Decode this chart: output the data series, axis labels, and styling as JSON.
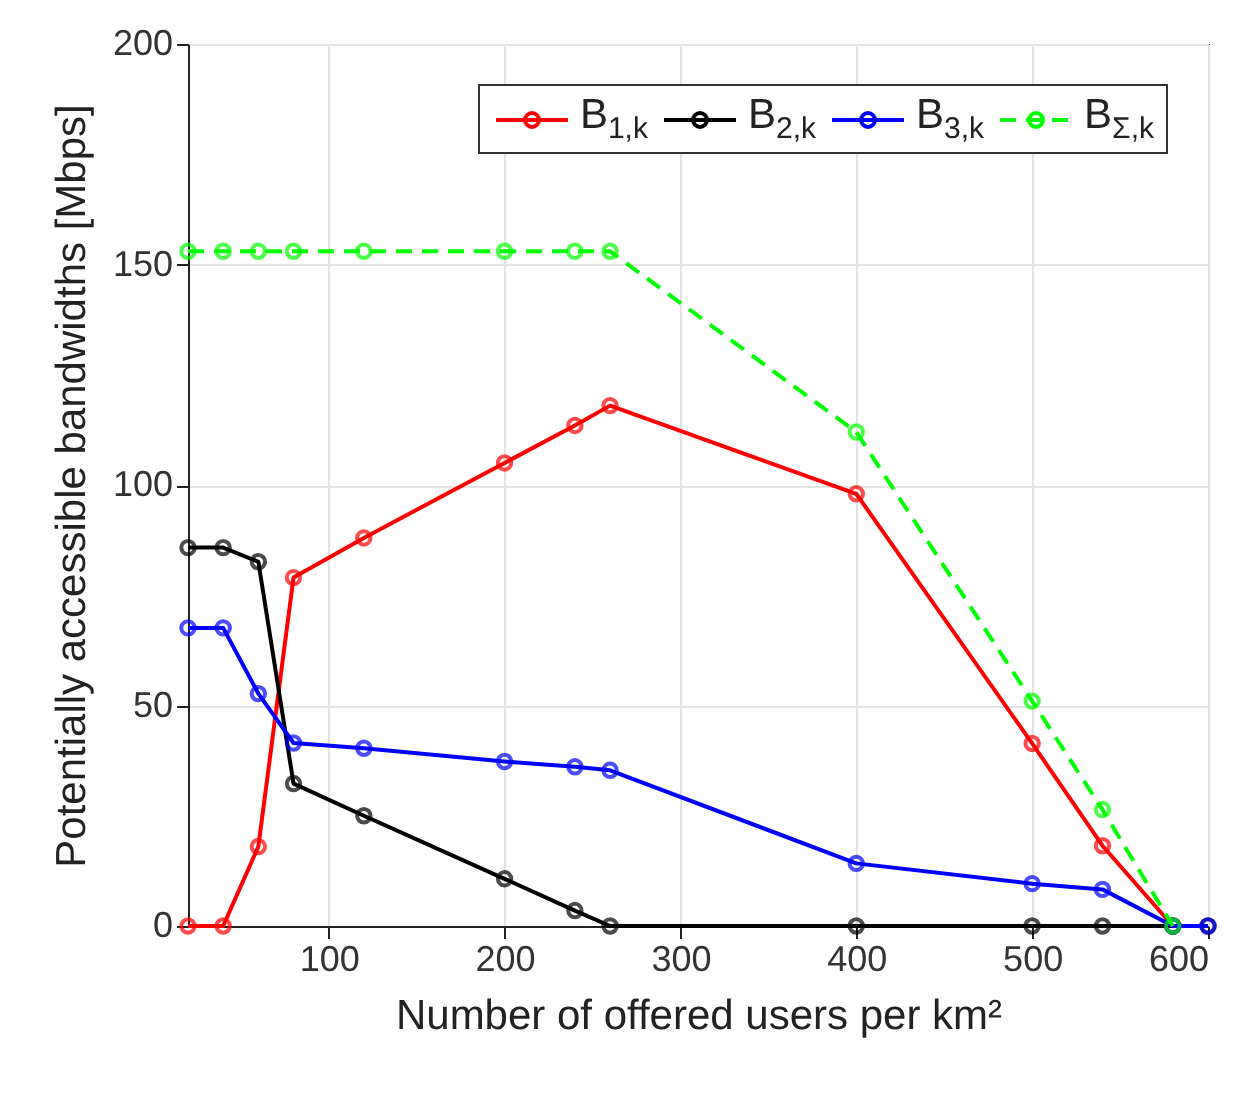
{
  "chart_data": {
    "type": "line",
    "xlabel": "Number of offered users per km²",
    "ylabel": "Potentially accessible bandwidths [Mbps]",
    "xlim": [
      20,
      600
    ],
    "ylim": [
      0,
      200
    ],
    "xticks": [
      100,
      200,
      300,
      400,
      500,
      600
    ],
    "yticks": [
      0,
      50,
      100,
      150,
      200
    ],
    "grid": true,
    "legend": "top right",
    "marker": "circle",
    "series": [
      {
        "name": "B$_{1,k}$",
        "color": "#ff0000",
        "line_style": "solid",
        "x": [
          20,
          40,
          60,
          80,
          120,
          200,
          240,
          260,
          400,
          500,
          540,
          580
        ],
        "values": [
          0,
          0,
          18,
          79,
          88,
          105,
          113.5,
          118,
          98,
          41.4,
          18.2,
          0
        ]
      },
      {
        "name": "B$_{2,k}$",
        "color": "#000000",
        "line_style": "solid",
        "x": [
          20,
          40,
          60,
          80,
          120,
          200,
          240,
          260,
          400,
          500,
          540,
          580,
          600
        ],
        "values": [
          85.8,
          85.8,
          82.6,
          32.3,
          25,
          10.7,
          3.5,
          0,
          0,
          0,
          0,
          0,
          0
        ]
      },
      {
        "name": "B$_{3,k}$",
        "color": "#0000ff",
        "line_style": "solid",
        "x": [
          20,
          40,
          60,
          80,
          120,
          200,
          240,
          260,
          400,
          500,
          540,
          580,
          600
        ],
        "values": [
          67.6,
          67.6,
          52.7,
          41.5,
          40.3,
          37.3,
          36.1,
          35.3,
          14.2,
          9.6,
          8.3,
          0,
          0
        ]
      },
      {
        "name": "B$_{Σ,k}$",
        "color": "#00ff00",
        "line_style": "dashed",
        "x": [
          20,
          40,
          60,
          80,
          120,
          200,
          240,
          260,
          400,
          500,
          540,
          580
        ],
        "values": [
          153,
          153,
          153,
          153,
          153,
          153,
          153,
          153,
          112,
          51,
          26.4,
          0
        ]
      }
    ]
  }
}
